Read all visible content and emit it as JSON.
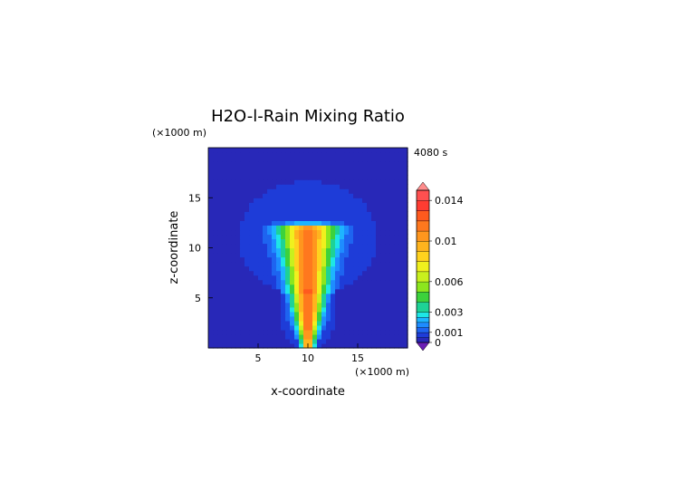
{
  "chart_data": {
    "type": "heatmap",
    "title": "H2O-l-Rain Mixing Ratio",
    "time_label": "4080 s",
    "xlabel": "x-coordinate",
    "ylabel": "z-coordinate",
    "x_unit": "(×1000 m)",
    "y_unit": "(×1000 m)",
    "xlim": [
      0,
      20
    ],
    "ylim": [
      0,
      20
    ],
    "x_ticks": [
      5,
      10,
      15
    ],
    "x_tick_labels": [
      "5",
      "10",
      "15"
    ],
    "y_ticks": [
      5,
      10,
      15
    ],
    "y_tick_labels": [
      "5",
      "10",
      "15"
    ],
    "colorbar": {
      "levels": [
        0,
        0.0005,
        0.001,
        0.0015,
        0.002,
        0.0025,
        0.003,
        0.004,
        0.005,
        0.006,
        0.007,
        0.008,
        0.009,
        0.01,
        0.011,
        0.012,
        0.013,
        0.014,
        0.015
      ],
      "colors": [
        "#2828b8",
        "#1e3cd8",
        "#1e64f0",
        "#1e8cff",
        "#1eb4ff",
        "#1ee6e6",
        "#1ed296",
        "#3cd23c",
        "#8ce61e",
        "#c8f01e",
        "#f0f01e",
        "#ffd21e",
        "#ffb41e",
        "#ff961e",
        "#ff781e",
        "#ff5a1e",
        "#ff3c32",
        "#ff5050"
      ],
      "under_color": "#6a1eb4",
      "over_color": "#ff8c8c",
      "tick_values": [
        0,
        0.001,
        0.003,
        0.006,
        0.01,
        0.014
      ],
      "tick_labels": [
        "0",
        "0.001",
        "0.003",
        "0.006",
        "0.01",
        "0.014"
      ]
    },
    "grid": false
  }
}
